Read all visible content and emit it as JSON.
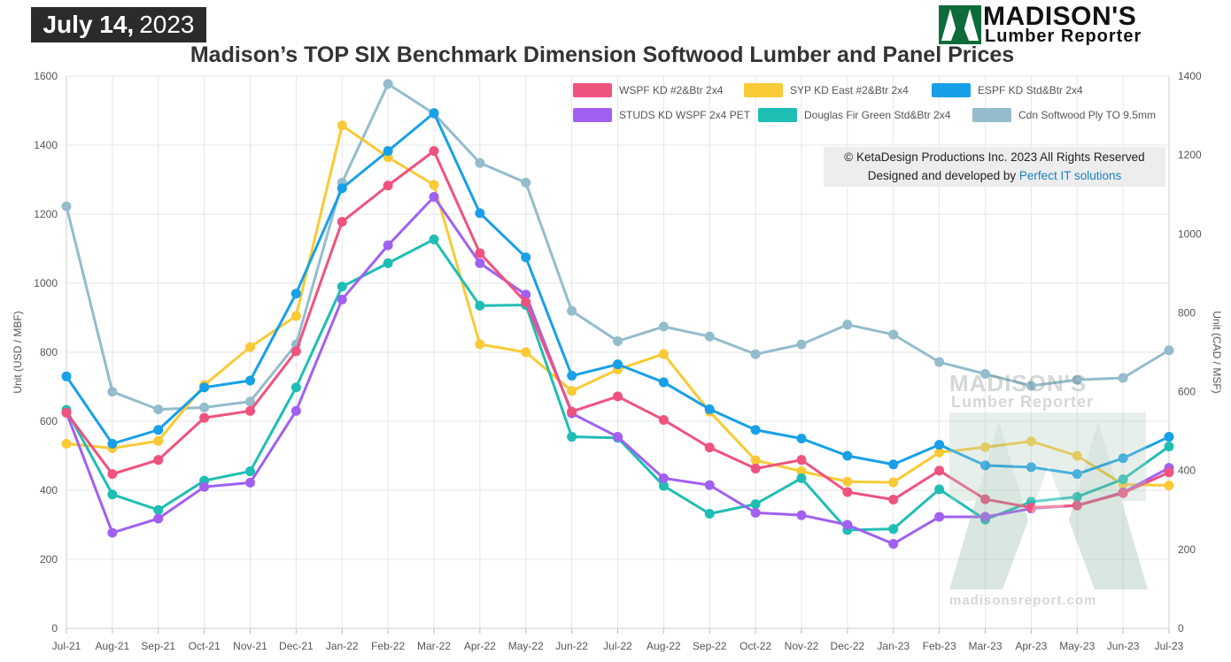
{
  "date_badge": {
    "day_month": "July 14,",
    "year": "2023"
  },
  "logo": {
    "line1": "MADISON'S",
    "line2": "Lumber Reporter"
  },
  "watermark": {
    "line1": "MADISON'S",
    "line2": "Lumber Reporter",
    "url": "madisonsreport.com"
  },
  "copyright": {
    "line1": "© KetaDesign Productions Inc. 2023 All Rights Reserved",
    "line2_prefix": "Designed and developed by",
    "line2_link": "Perfect IT solutions"
  },
  "colors": {
    "wspf": "#f0527e",
    "syp": "#f9ca35",
    "espf": "#17a0e8",
    "studs": "#a160f2",
    "dfir": "#1fbeb4",
    "ply": "#94bccd",
    "grid": "#e6e6e6",
    "badge": "#2b2b2b",
    "link": "#1a7fc0"
  },
  "chart_data": {
    "type": "line",
    "title": "Madison’s TOP SIX Benchmark Dimension Softwood Lumber and Panel Prices",
    "ylabel": "Unit (USD / MBF)",
    "y2label": "Unit (CAD / MSF)",
    "ylim": [
      0,
      1600
    ],
    "y2lim": [
      0,
      1400
    ],
    "yticks": [
      "0",
      "200",
      "400",
      "600",
      "800",
      "1000",
      "1200",
      "1400",
      "1600"
    ],
    "y2ticks": [
      "0",
      "200",
      "400",
      "600",
      "800",
      "1000",
      "1200",
      "1400"
    ],
    "grid": true,
    "legend_position": "top-right",
    "categories": [
      "Jul-21",
      "Aug-21",
      "Sep-21",
      "Oct-21",
      "Nov-21",
      "Dec-21",
      "Jan-22",
      "Feb-22",
      "Mar-22",
      "Apr-22",
      "May-22",
      "Jun-22",
      "Jul-22",
      "Aug-22",
      "Sep-22",
      "Oct-22",
      "Nov-22",
      "Dec-22",
      "Jan-23",
      "Feb-23",
      "Mar-23",
      "Apr-23",
      "May-23",
      "Jun-23",
      "Jul-23"
    ],
    "series": [
      {
        "key": "wspf",
        "name": "WSPF KD #2&Btr 2x4",
        "axis": "left",
        "values": [
          625,
          447,
          488,
          610,
          630,
          803,
          1178,
          1283,
          1383,
          1087,
          945,
          628,
          672,
          604,
          524,
          463,
          488,
          395,
          373,
          457,
          374,
          350,
          356,
          392,
          452
        ]
      },
      {
        "key": "syp",
        "name": "SYP KD East #2&Btr 2x4",
        "axis": "left",
        "values": [
          535,
          522,
          543,
          705,
          815,
          905,
          1457,
          1365,
          1285,
          823,
          800,
          688,
          750,
          795,
          628,
          487,
          455,
          425,
          423,
          510,
          525,
          542,
          500,
          417,
          414
        ]
      },
      {
        "key": "espf",
        "name": "ESPF KD Std&Btr 2x4",
        "axis": "left",
        "values": [
          730,
          535,
          575,
          698,
          718,
          970,
          1275,
          1383,
          1493,
          1203,
          1075,
          732,
          765,
          713,
          635,
          575,
          550,
          500,
          475,
          532,
          472,
          467,
          447,
          493,
          555
        ]
      },
      {
        "key": "studs",
        "name": "STUDS KD WSPF 2x4 PET",
        "axis": "left",
        "values": [
          625,
          277,
          318,
          410,
          422,
          630,
          953,
          1110,
          1250,
          1058,
          967,
          623,
          555,
          435,
          415,
          335,
          328,
          300,
          245,
          323,
          323,
          347,
          356,
          394,
          465
        ]
      },
      {
        "key": "dfir",
        "name": "Douglas Fir Green Std&Btr 2x4",
        "axis": "left",
        "values": [
          633,
          388,
          343,
          428,
          455,
          698,
          990,
          1058,
          1127,
          935,
          937,
          555,
          552,
          413,
          332,
          360,
          435,
          285,
          288,
          403,
          315,
          367,
          381,
          432,
          527
        ]
      },
      {
        "key": "ply",
        "name": "Cdn Softwood Ply TO 9.5mm",
        "axis": "right",
        "values": [
          1070,
          600,
          555,
          560,
          575,
          720,
          1130,
          1380,
          1305,
          1180,
          1130,
          805,
          728,
          765,
          740,
          695,
          720,
          770,
          745,
          675,
          645,
          615,
          630,
          635,
          705
        ]
      }
    ]
  }
}
